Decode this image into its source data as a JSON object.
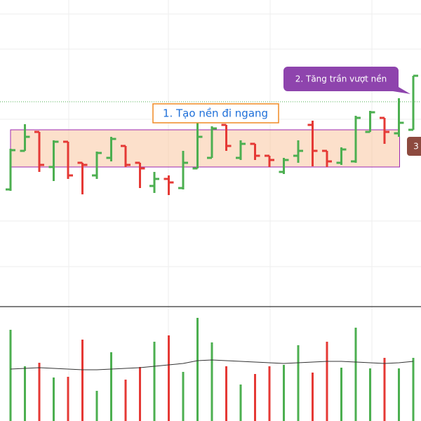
{
  "chart_data": {
    "type": "ohlc",
    "categories": [
      null,
      null,
      null,
      null,
      null,
      null,
      null,
      null,
      null,
      null,
      null,
      null,
      null,
      null,
      null,
      null,
      null,
      null,
      null,
      null,
      null,
      null,
      null,
      null,
      null,
      null,
      null,
      null,
      null
    ],
    "open": [
      16.5,
      22.0,
      24.7,
      19.7,
      23.3,
      20.3,
      18.5,
      21.0,
      22.7,
      20.3,
      17.0,
      18.0,
      16.7,
      19.5,
      21.0,
      25.7,
      21.0,
      23.0,
      21.3,
      19.0,
      21.3,
      25.7,
      22.0,
      20.3,
      20.5,
      24.7,
      26.7,
      24.5,
      25.0
    ],
    "high": [
      22.3,
      25.8,
      24.7,
      23.5,
      23.3,
      20.3,
      21.9,
      24.0,
      22.7,
      20.3,
      19.0,
      18.5,
      22.0,
      26.3,
      25.5,
      25.7,
      23.5,
      23.0,
      21.3,
      21.0,
      23.5,
      26.3,
      22.0,
      22.5,
      27.0,
      27.7,
      26.7,
      29.5,
      32.7
    ],
    "low": [
      16.3,
      22.0,
      19.0,
      17.7,
      18.0,
      15.8,
      18.0,
      20.5,
      19.7,
      16.7,
      16.0,
      15.7,
      16.5,
      19.5,
      21.0,
      22.0,
      20.7,
      20.7,
      19.7,
      18.7,
      20.3,
      19.8,
      19.7,
      20.0,
      20.3,
      24.7,
      23.0,
      24.0,
      25.0
    ],
    "close": [
      22.1,
      24.0,
      20.0,
      23.3,
      18.5,
      20.0,
      21.7,
      23.7,
      20.0,
      19.5,
      18.0,
      17.5,
      20.3,
      24.0,
      25.2,
      22.7,
      23.0,
      21.3,
      20.7,
      20.7,
      22.0,
      22.0,
      20.5,
      22.2,
      26.7,
      27.5,
      24.7,
      26.0,
      32.7
    ],
    "volume": [
      13.0,
      7.8,
      8.3,
      6.2,
      6.3,
      11.6,
      4.3,
      9.8,
      5.9,
      7.7,
      11.3,
      12.2,
      7.0,
      14.7,
      11.2,
      7.8,
      5.2,
      6.7,
      7.8,
      8.0,
      10.8,
      6.9,
      11.3,
      7.6,
      13.3,
      7.5,
      9.0,
      7.5,
      9.0
    ],
    "volume_ma": [
      7.4,
      7.5,
      7.6,
      7.5,
      7.4,
      7.3,
      7.3,
      7.4,
      7.5,
      7.6,
      7.8,
      8.0,
      8.2,
      8.6,
      8.7,
      8.6,
      8.5,
      8.4,
      8.3,
      8.2,
      8.3,
      8.4,
      8.5,
      8.5,
      8.4,
      8.3,
      8.2,
      8.3,
      8.5
    ],
    "up_color": "#4caf50",
    "down_color": "#e53935",
    "ma_color": "#333333",
    "ylim": [
      0,
      43.5
    ],
    "volume_ylim": [
      0,
      16.3
    ],
    "grid": true,
    "range_box": {
      "top": 25.0,
      "bottom": 19.7
    },
    "price_line": 29.0,
    "annotations": [
      "1. Tạo nền đi ngang",
      "2. Tăng trần vượt nền",
      "3"
    ]
  }
}
